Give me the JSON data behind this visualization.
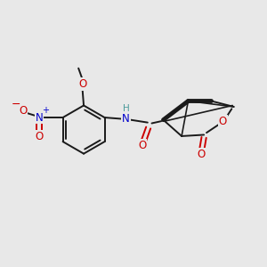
{
  "bg_color": "#e8e8e8",
  "fig_size": [
    3.0,
    3.0
  ],
  "dpi": 100,
  "bond_color": "#1a1a1a",
  "bond_lw": 1.4,
  "atom_colors": {
    "O": "#cc0000",
    "N": "#0000cc",
    "H": "#4a9a9a",
    "C": "#1a1a1a"
  },
  "font_size_atom": 8.5,
  "font_size_small": 7.0,
  "xlim": [
    0,
    10
  ],
  "ylim": [
    0,
    10
  ]
}
